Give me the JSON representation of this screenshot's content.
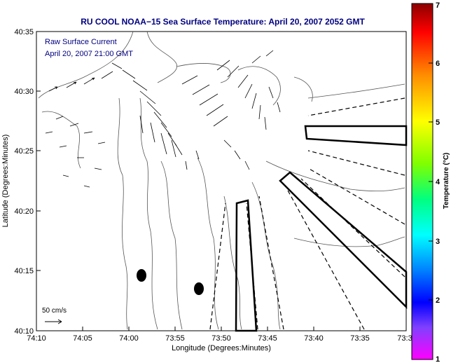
{
  "title": "RU COOL  NOAA−15  Sea Surface Temperature:  April 20, 2007 2052 GMT",
  "legend": {
    "line1": "Raw Surface Current",
    "line2": "April 20, 2007 21:00 GMT"
  },
  "axes": {
    "xlabel": "Longitude (Degrees:Minutes)",
    "ylabel": "Latitude (Degrees:Minutes)",
    "xticks": [
      "74:10",
      "74:05",
      "74:00",
      "73:55",
      "73:50",
      "73:45",
      "73:40",
      "73:35",
      "73:3"
    ],
    "yticks": [
      "40:35",
      "40:30",
      "40:25",
      "40:20",
      "40:15",
      "40:10"
    ]
  },
  "colorbar": {
    "label": "Temperature (°C)",
    "ticks": [
      "7",
      "6",
      "5",
      "4",
      "3",
      "2",
      "1"
    ],
    "min": 1,
    "max": 7
  },
  "scale_arrow": {
    "label": "50 cm/s"
  }
}
